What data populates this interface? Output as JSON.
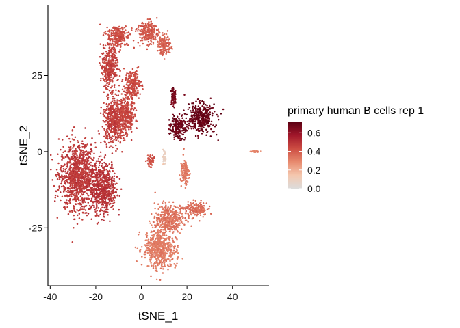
{
  "chart_data": {
    "type": "scatter",
    "xlabel": "tSNE_1",
    "ylabel": "tSNE_2",
    "xlim": [
      -41,
      56
    ],
    "ylim": [
      -44,
      48
    ],
    "x_ticks": [
      -40,
      -20,
      0,
      20,
      40
    ],
    "y_ticks": [
      -25,
      0,
      25
    ],
    "x_tick_labels": [
      "-40",
      "-20",
      "0",
      "20",
      "40"
    ],
    "y_tick_labels": [
      "-25",
      "0",
      "25"
    ],
    "grid": false,
    "legend": {
      "title": "primary human B cells rep 1",
      "placement": "right",
      "type": "colorbar",
      "range": [
        0,
        0.72
      ],
      "breaks": [
        0.0,
        0.2,
        0.4,
        0.6
      ],
      "break_labels": [
        "0.0",
        "0.2",
        "0.4",
        "0.6"
      ],
      "colors": [
        "#dcdcdc",
        "#f4c7ae",
        "#e78a6e",
        "#cc4c42",
        "#a0162a",
        "#5a0012"
      ]
    },
    "clusters": [
      {
        "cx": -28,
        "cy": -8,
        "sx": 6.5,
        "sy": 9,
        "value": 0.48
      },
      {
        "cx": -17,
        "cy": -12,
        "sx": 5,
        "sy": 7,
        "value": 0.5
      },
      {
        "cx": -12,
        "cy": 10,
        "sx": 4,
        "sy": 6,
        "value": 0.47
      },
      {
        "cx": -7,
        "cy": 12,
        "sx": 3.5,
        "sy": 5,
        "value": 0.45
      },
      {
        "cx": -14,
        "cy": 28,
        "sx": 3,
        "sy": 6,
        "value": 0.46
      },
      {
        "cx": -10,
        "cy": 38,
        "sx": 4,
        "sy": 3,
        "value": 0.43
      },
      {
        "cx": 3,
        "cy": 39,
        "sx": 4,
        "sy": 3,
        "value": 0.4
      },
      {
        "cx": 10,
        "cy": 35,
        "sx": 2.5,
        "sy": 2.5,
        "value": 0.38
      },
      {
        "cx": -4,
        "cy": 22,
        "sx": 3,
        "sy": 4,
        "value": 0.44
      },
      {
        "cx": 26,
        "cy": 11,
        "sx": 5,
        "sy": 4,
        "value": 0.69
      },
      {
        "cx": 16,
        "cy": 8,
        "sx": 3,
        "sy": 3,
        "value": 0.68
      },
      {
        "cx": 14,
        "cy": 18,
        "sx": 1,
        "sy": 2.5,
        "value": 0.66
      },
      {
        "cx": 8,
        "cy": -32,
        "sx": 6,
        "sy": 5,
        "value": 0.32
      },
      {
        "cx": 12,
        "cy": -22,
        "sx": 5,
        "sy": 4,
        "value": 0.34
      },
      {
        "cx": 24,
        "cy": -19,
        "sx": 4,
        "sy": 2,
        "value": 0.36
      },
      {
        "cx": 19,
        "cy": -7,
        "sx": 1.5,
        "sy": 4,
        "value": 0.33
      },
      {
        "cx": 10,
        "cy": -2,
        "sx": 0.5,
        "sy": 1.5,
        "value": 0.08
      },
      {
        "cx": 4,
        "cy": -3,
        "sx": 1.2,
        "sy": 1.5,
        "value": 0.42
      },
      {
        "cx": 50,
        "cy": 0,
        "sx": 1.5,
        "sy": 0.3,
        "value": 0.3
      }
    ]
  }
}
